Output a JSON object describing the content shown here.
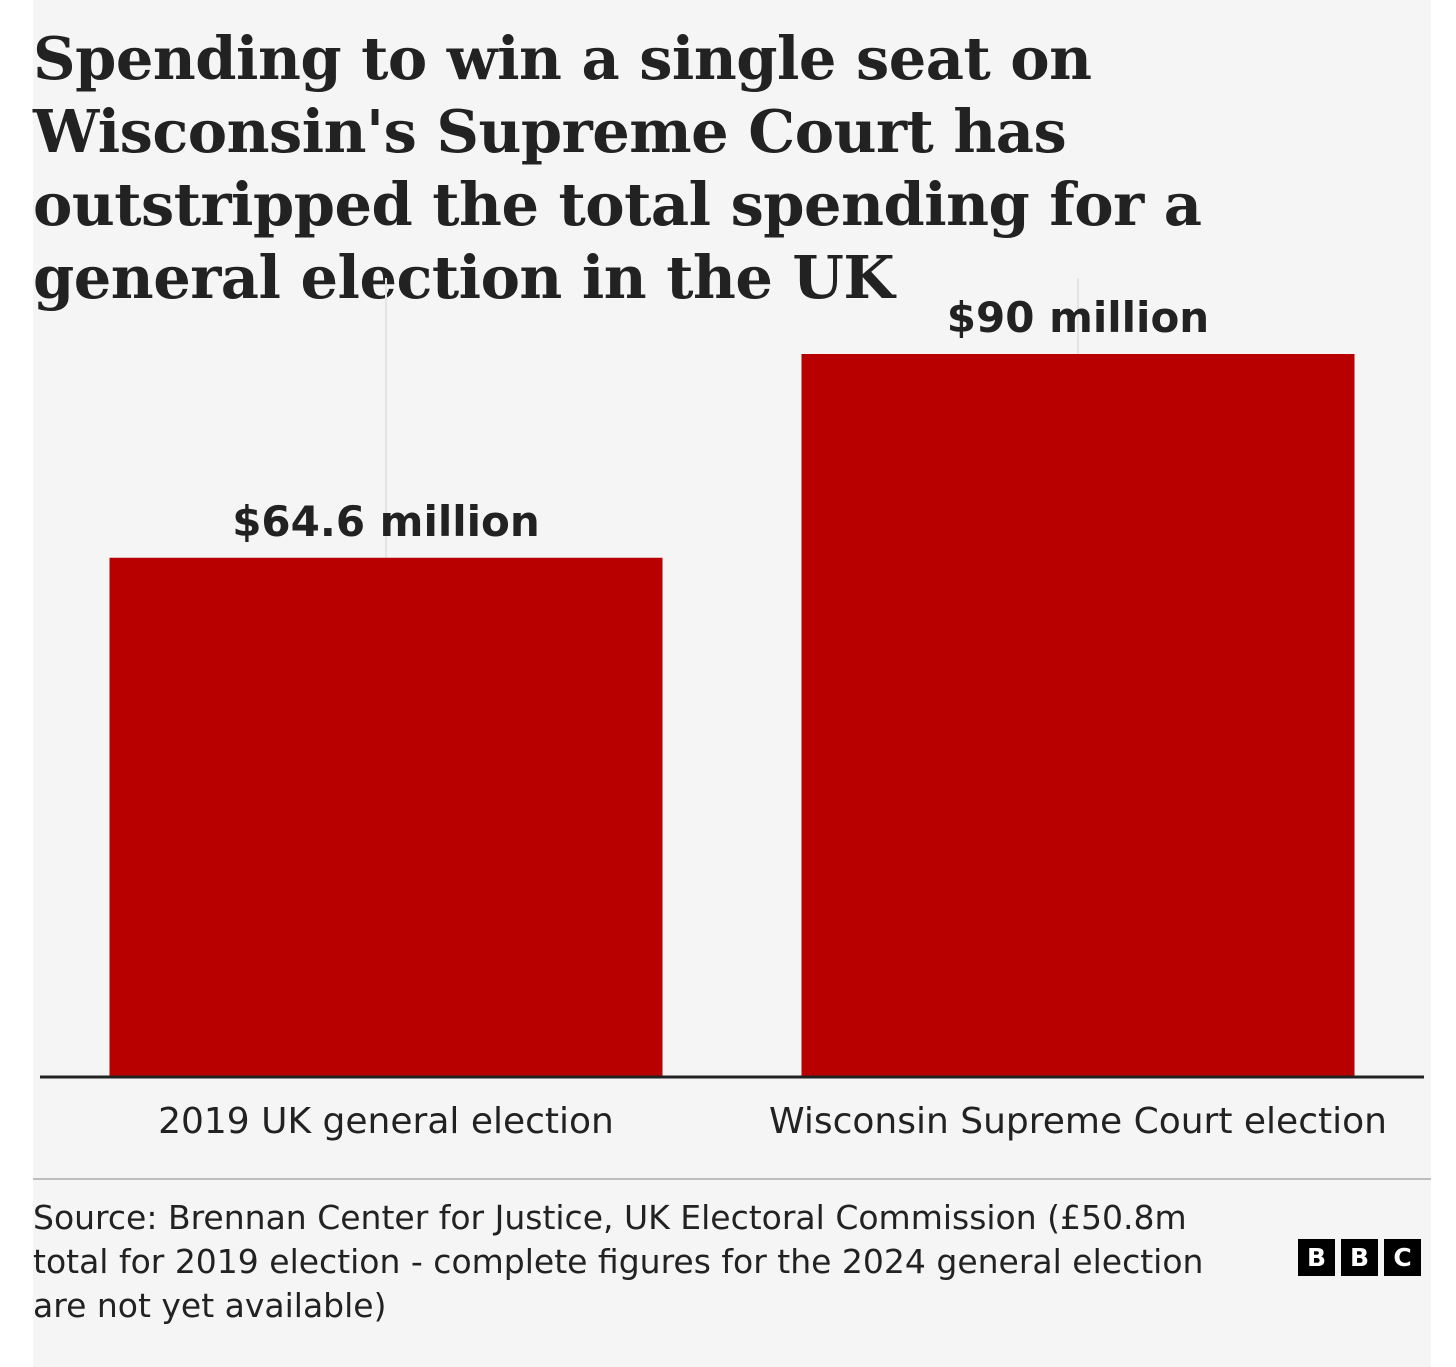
{
  "title": "Spending to win a single seat on Wisconsin's Supreme Court has outstripped the total spending for a general election in the UK",
  "chart_data": {
    "type": "bar",
    "title": "Spending to win a single seat on Wisconsin's Supreme Court has outstripped the total spending for a general election in the UK",
    "categories": [
      "2019 UK general election",
      "Wisconsin Supreme Court election"
    ],
    "values": [
      64.6,
      90
    ],
    "value_labels": [
      "$64.6 million",
      "$90 million"
    ],
    "units": "million US dollars",
    "xlabel": "",
    "ylabel": "",
    "ylim": [
      0,
      100
    ],
    "grid": true,
    "bar_color": "#b80000",
    "label_color": "#222222",
    "axis_color": "#222222",
    "grid_color": "#e4e4e4"
  },
  "source": "Source: Brennan Center for Justice, UK Electoral Commission (£50.8m total for 2019 election - complete figures for the 2024 general election are not yet available)",
  "logo": {
    "letters": [
      "B",
      "B",
      "C"
    ]
  }
}
